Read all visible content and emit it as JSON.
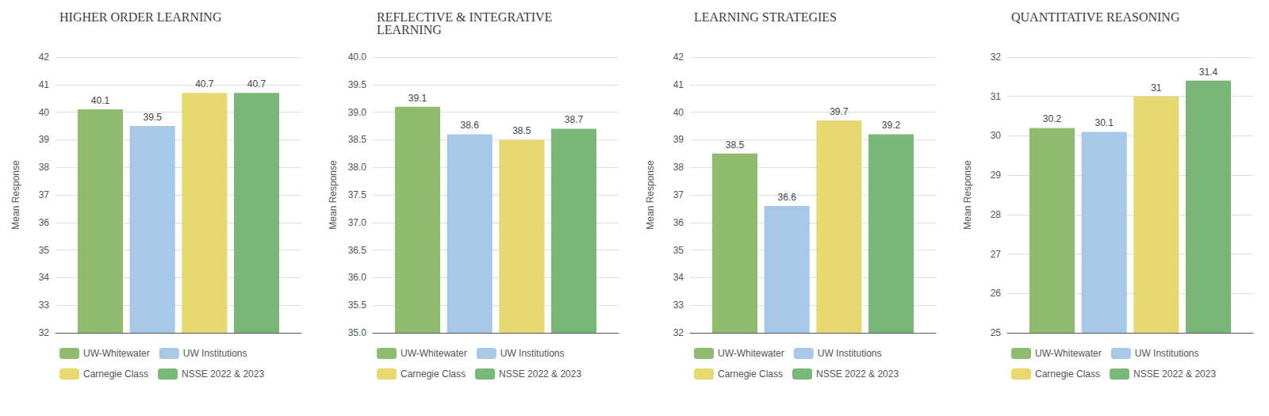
{
  "chart_data": [
    {
      "type": "bar",
      "title": "HIGHER ORDER LEARNING",
      "ylabel": "Mean Response",
      "ylim": [
        32,
        42
      ],
      "yticks": [
        32,
        33,
        34,
        35,
        36,
        37,
        38,
        39,
        40,
        41,
        42
      ],
      "series": [
        {
          "name": "UW-Whitewater",
          "color": "#8fbc6e",
          "values": [
            40.1
          ]
        },
        {
          "name": "UW Institutions",
          "color": "#a8c8e8",
          "values": [
            39.5
          ]
        },
        {
          "name": "Carnegie Class",
          "color": "#e8d870",
          "values": [
            40.7
          ]
        },
        {
          "name": "NSSE 2022 & 2023",
          "color": "#7ab87a",
          "values": [
            40.7
          ]
        }
      ],
      "data_labels": true,
      "grid": true,
      "legend": "bottom",
      "tick_labels": "y"
    },
    {
      "type": "bar",
      "title": "REFLECTIVE & INTEGRATIVE\nLEARNING",
      "ylabel": "Mean Response",
      "ylim": [
        35,
        40
      ],
      "yticks": [
        {
          "value": 35,
          "label": "35.0"
        },
        {
          "value": 35.5,
          "label": "35.5"
        },
        {
          "value": 36,
          "label": "36.0"
        },
        {
          "value": 36.5,
          "label": "36.5"
        },
        {
          "value": 37,
          "label": "37.0"
        },
        {
          "value": 37.5,
          "label": "37.5"
        },
        {
          "value": 38,
          "label": "38.0"
        },
        {
          "value": 38.5,
          "label": "38.5"
        },
        {
          "value": 39,
          "label": "39.0"
        },
        {
          "value": 39.5,
          "label": "39.5"
        },
        {
          "value": 40,
          "label": "40.0"
        }
      ],
      "series": [
        {
          "name": "UW-Whitewater",
          "color": "#8fbc6e",
          "values": [
            39.1
          ]
        },
        {
          "name": "UW Institutions",
          "color": "#a8c8e8",
          "values": [
            38.6
          ]
        },
        {
          "name": "Carnegie Class",
          "color": "#e8d870",
          "values": [
            38.5
          ]
        },
        {
          "name": "NSSE 2022 & 2023",
          "color": "#7ab87a",
          "values": [
            38.7
          ]
        }
      ],
      "data_labels": true,
      "grid": true,
      "legend": "bottom",
      "tick_labels": "y"
    },
    {
      "type": "bar",
      "title": "LEARNING STRATEGIES",
      "ylabel": "Mean Response",
      "ylim": [
        32,
        42
      ],
      "yticks": [
        32,
        33,
        34,
        35,
        36,
        37,
        38,
        39,
        40,
        41,
        42
      ],
      "series": [
        {
          "name": "UW-Whitewater",
          "color": "#8fbc6e",
          "values": [
            38.5
          ]
        },
        {
          "name": "UW Institutions",
          "color": "#a8c8e8",
          "values": [
            36.6
          ]
        },
        {
          "name": "Carnegie Class",
          "color": "#e8d870",
          "values": [
            39.7
          ]
        },
        {
          "name": "NSSE 2022 & 2023",
          "color": "#7ab87a",
          "values": [
            39.2
          ]
        }
      ],
      "data_labels": true,
      "grid": true,
      "legend": "bottom",
      "tick_labels": "y"
    },
    {
      "type": "bar",
      "title": "QUANTITATIVE REASONING",
      "ylabel": "Mean Response",
      "ylim": [
        25,
        32
      ],
      "yticks": [
        25,
        26,
        27,
        28,
        29,
        30,
        31,
        32
      ],
      "series": [
        {
          "name": "UW-Whitewater",
          "color": "#8fbc6e",
          "values": [
            30.2
          ]
        },
        {
          "name": "UW Institutions",
          "color": "#a8c8e8",
          "values": [
            30.1
          ]
        },
        {
          "name": "Carnegie Class",
          "color": "#e8d870",
          "values": [
            31.0
          ]
        },
        {
          "name": "NSSE 2022 & 2023",
          "color": "#7ab87a",
          "values": [
            31.4
          ]
        }
      ],
      "data_labels": true,
      "grid": true,
      "legend": "bottom",
      "tick_labels": "y"
    }
  ]
}
